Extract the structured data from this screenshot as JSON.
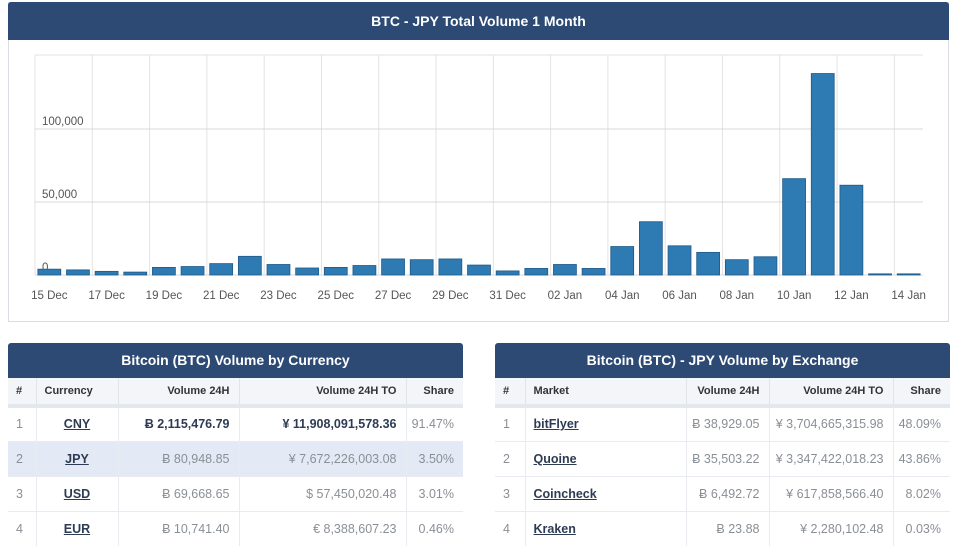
{
  "chart": {
    "title": "BTC - JPY Total Volume 1 Month"
  },
  "chart_data": {
    "type": "bar",
    "title": "BTC - JPY Total Volume 1 Month",
    "xlabel": "",
    "ylabel": "",
    "ylim": [
      0,
      150000
    ],
    "y_ticks": [
      0,
      50000,
      100000
    ],
    "y_tick_labels": [
      "0",
      "50,000",
      "100,000"
    ],
    "x_tick_labels": [
      "15 Dec",
      "17 Dec",
      "19 Dec",
      "21 Dec",
      "23 Dec",
      "25 Dec",
      "27 Dec",
      "29 Dec",
      "31 Dec",
      "02 Jan",
      "04 Jan",
      "06 Jan",
      "08 Jan",
      "10 Jan",
      "12 Jan",
      "14 Jan"
    ],
    "categories": [
      "15 Dec",
      "16 Dec",
      "17 Dec",
      "18 Dec",
      "19 Dec",
      "20 Dec",
      "21 Dec",
      "22 Dec",
      "23 Dec",
      "24 Dec",
      "25 Dec",
      "26 Dec",
      "27 Dec",
      "28 Dec",
      "29 Dec",
      "30 Dec",
      "31 Dec",
      "01 Jan",
      "02 Jan",
      "03 Jan",
      "04 Jan",
      "05 Jan",
      "06 Jan",
      "07 Jan",
      "08 Jan",
      "09 Jan",
      "10 Jan",
      "11 Jan",
      "12 Jan",
      "13 Jan",
      "14 Jan"
    ],
    "values": [
      4000,
      3500,
      2500,
      2000,
      5200,
      5800,
      7800,
      12800,
      7200,
      4800,
      5200,
      6500,
      11000,
      10500,
      11000,
      6800,
      2800,
      4500,
      7200,
      4500,
      19500,
      36500,
      20000,
      15500,
      10500,
      12500,
      66000,
      138000,
      61500,
      800,
      800
    ],
    "bar_color": "#2e7ab3"
  },
  "currency_table": {
    "title": "Bitcoin (BTC) Volume by Currency",
    "headers": [
      "#",
      "Currency",
      "Volume 24H",
      "Volume 24H TO",
      "Share"
    ],
    "rows": [
      {
        "rank": "1",
        "name": "CNY",
        "vol": "Ƀ 2,115,476.79",
        "to": "¥ 11,908,091,578.36",
        "share": "91.47%"
      },
      {
        "rank": "2",
        "name": "JPY",
        "vol": "Ƀ 80,948.85",
        "to": "¥ 7,672,226,003.08",
        "share": "3.50%"
      },
      {
        "rank": "3",
        "name": "USD",
        "vol": "Ƀ 69,668.65",
        "to": "$ 57,450,020.48",
        "share": "3.01%"
      },
      {
        "rank": "4",
        "name": "EUR",
        "vol": "Ƀ 10,741.40",
        "to": "€ 8,388,607.23",
        "share": "0.46%"
      }
    ]
  },
  "exchange_table": {
    "title": "Bitcoin (BTC) - JPY Volume by Exchange",
    "headers": [
      "#",
      "Market",
      "Volume 24H",
      "Volume 24H TO",
      "Share"
    ],
    "rows": [
      {
        "rank": "1",
        "name": "bitFlyer",
        "vol": "Ƀ 38,929.05",
        "to": "¥ 3,704,665,315.98",
        "share": "48.09%"
      },
      {
        "rank": "2",
        "name": "Quoine",
        "vol": "Ƀ 35,503.22",
        "to": "¥ 3,347,422,018.23",
        "share": "43.86%"
      },
      {
        "rank": "3",
        "name": "Coincheck",
        "vol": "Ƀ 6,492.72",
        "to": "¥ 617,858,566.40",
        "share": "8.02%"
      },
      {
        "rank": "4",
        "name": "Kraken",
        "vol": "Ƀ 23.88",
        "to": "¥ 2,280,102.48",
        "share": "0.03%"
      }
    ]
  }
}
